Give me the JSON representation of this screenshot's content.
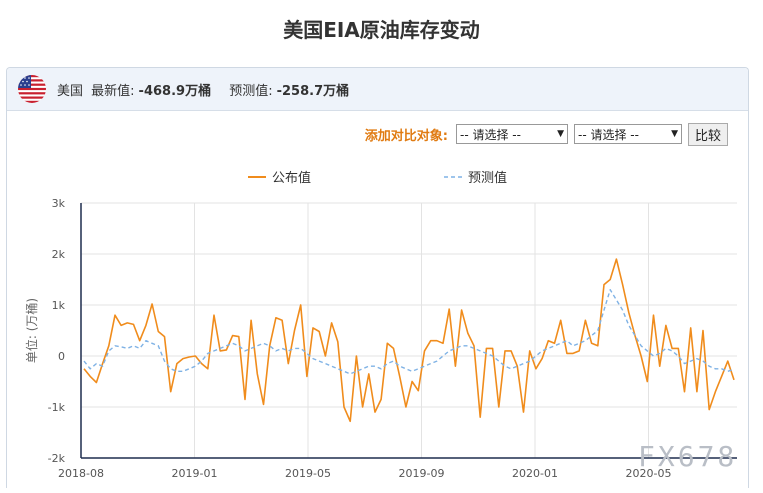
{
  "title": "美国EIA原油库存变动",
  "info": {
    "country": "美国",
    "latest_label": "最新值:",
    "latest_value": "-468.9万桶",
    "forecast_label": "预测值:",
    "forecast_value": "-258.7万桶"
  },
  "compare": {
    "label": "添加对比对象:",
    "select1": "-- 请选择 --",
    "select2": "-- 请选择 --",
    "button": "比较"
  },
  "watermark": "FX678",
  "colors": {
    "actual": "#f08c1c",
    "forecast": "#7fb2e5"
  },
  "chart_data": {
    "type": "line",
    "ylabel": "单位: (万桶)",
    "ylim": [
      -2000,
      3000
    ],
    "yticks": [
      "3k",
      "2k",
      "1k",
      "0",
      "-1k",
      "-2k"
    ],
    "xticks": [
      "2018-08",
      "2019-01",
      "2019-05",
      "2019-09",
      "2020-01",
      "2020-05"
    ],
    "grid": true,
    "legend_position": "top",
    "series": [
      {
        "name": "公布值",
        "style": "solid",
        "values": [
          -250,
          -400,
          -520,
          -150,
          200,
          800,
          600,
          650,
          620,
          300,
          600,
          1020,
          480,
          380,
          -700,
          -150,
          -50,
          -20,
          0,
          -150,
          -250,
          800,
          100,
          120,
          400,
          380,
          -850,
          700,
          -350,
          -950,
          200,
          750,
          700,
          -150,
          500,
          1000,
          -400,
          550,
          480,
          0,
          650,
          280,
          -1000,
          -1280,
          0,
          -1000,
          -350,
          -1100,
          -850,
          250,
          150,
          -400,
          -1000,
          -500,
          -680,
          100,
          300,
          300,
          250,
          920,
          -200,
          900,
          450,
          200,
          -1200,
          150,
          150,
          -1000,
          100,
          100,
          -200,
          -1100,
          100,
          -250,
          -50,
          300,
          250,
          700,
          50,
          50,
          100,
          700,
          250,
          200,
          1400,
          1500,
          1900,
          1400,
          850,
          400,
          0,
          -500,
          800,
          -200,
          600,
          150,
          150,
          -700,
          550,
          -700,
          500,
          -1050,
          -700,
          -400,
          -100,
          -469
        ]
      },
      {
        "name": "预测值",
        "style": "dashed",
        "values": [
          -100,
          -250,
          -150,
          -200,
          100,
          200,
          180,
          150,
          200,
          150,
          300,
          250,
          200,
          -100,
          -250,
          -300,
          -300,
          -250,
          -200,
          -100,
          50,
          100,
          150,
          200,
          250,
          200,
          100,
          150,
          200,
          250,
          200,
          100,
          150,
          100,
          150,
          150,
          50,
          -50,
          -100,
          -150,
          -200,
          -250,
          -300,
          -350,
          -300,
          -250,
          -200,
          -200,
          -250,
          -150,
          -100,
          -200,
          -250,
          -300,
          -250,
          -200,
          -150,
          -100,
          0,
          100,
          150,
          200,
          200,
          150,
          100,
          50,
          0,
          -100,
          -200,
          -250,
          -200,
          -150,
          -100,
          0,
          100,
          150,
          200,
          250,
          300,
          200,
          250,
          300,
          400,
          500,
          900,
          1300,
          1100,
          900,
          600,
          400,
          200,
          100,
          0,
          50,
          150,
          100,
          0,
          -150,
          -100,
          -50,
          -100,
          -200,
          -250,
          -250,
          -300,
          -259
        ]
      }
    ]
  }
}
